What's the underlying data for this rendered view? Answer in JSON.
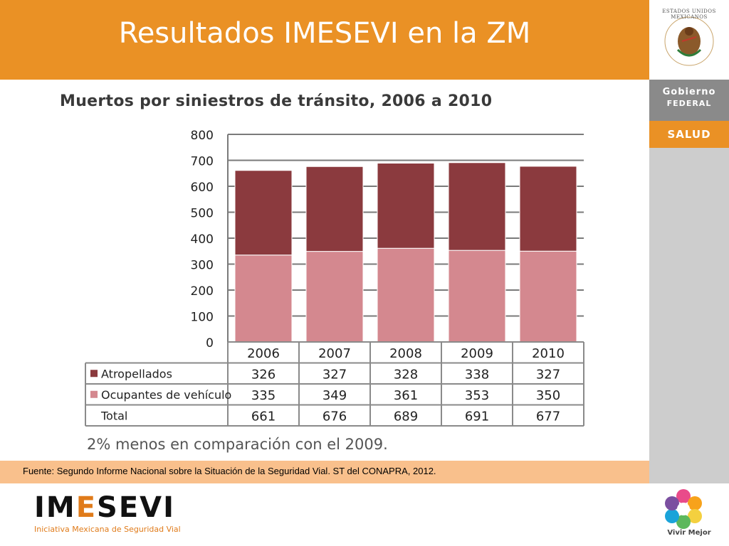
{
  "slide_title": "Resultados IMESEVI en la ZM",
  "sidebar": {
    "seal_text": "ESTADOS UNIDOS MEXICANOS",
    "gobierno_line1": "Gobierno",
    "gobierno_line2": "FEDERAL",
    "salud": "SALUD",
    "vivir_mejor": "Vivir Mejor"
  },
  "chart_data": {
    "type": "bar",
    "stacked": true,
    "title": "Muertos por siniestros de tránsito, 2006 a 2010",
    "categories": [
      "2006",
      "2007",
      "2008",
      "2009",
      "2010"
    ],
    "series": [
      {
        "name": "Atropellados",
        "values": [
          326,
          327,
          328,
          338,
          327
        ],
        "color": "#8b3a3e"
      },
      {
        "name": "Ocupantes de vehículo",
        "values": [
          335,
          349,
          361,
          353,
          350
        ],
        "color": "#d4888f"
      }
    ],
    "totals_label": "Total",
    "totals": [
      661,
      676,
      689,
      691,
      677
    ],
    "ylim": [
      0,
      800
    ],
    "yticks": [
      0,
      100,
      200,
      300,
      400,
      500,
      600,
      700,
      800
    ],
    "grid": true,
    "legend": "data-table"
  },
  "note": "2% menos en comparación con el 2009.",
  "source": "Fuente: Segundo Informe Nacional sobre la Situación de la Seguridad Vial. ST del CONAPRA, 2012.",
  "footer": {
    "logo_prefix": "IM",
    "logo_accent": "E",
    "logo_suffix": "SEVI",
    "tagline": "Iniciativa Mexicana de Seguridad Vial"
  }
}
